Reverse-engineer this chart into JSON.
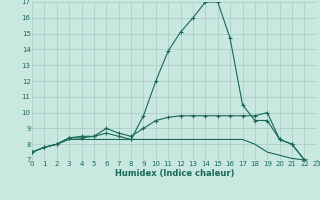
{
  "title": "",
  "xlabel": "Humidex (Indice chaleur)",
  "xlim": [
    0,
    23
  ],
  "ylim": [
    7,
    17
  ],
  "yticks": [
    7,
    8,
    9,
    10,
    11,
    12,
    13,
    14,
    15,
    16,
    17
  ],
  "xticks": [
    0,
    1,
    2,
    3,
    4,
    5,
    6,
    7,
    8,
    9,
    10,
    11,
    12,
    13,
    14,
    15,
    16,
    17,
    18,
    19,
    20,
    21,
    22,
    23
  ],
  "bg_color": "#c8e8e0",
  "grid_color": "#b0cec8",
  "line_color": "#1a6858",
  "line1_x": [
    0,
    1,
    2,
    3,
    4,
    5,
    6,
    7,
    8,
    9,
    10,
    11,
    12,
    13,
    14,
    15,
    16,
    17,
    18,
    19,
    20,
    21,
    22,
    23
  ],
  "line1_y": [
    7.5,
    7.8,
    8.0,
    8.4,
    8.5,
    8.5,
    8.7,
    8.5,
    8.3,
    9.8,
    12.0,
    13.9,
    15.1,
    16.0,
    17.0,
    17.0,
    14.7,
    10.5,
    9.5,
    9.5,
    8.3,
    8.0,
    7.0,
    6.9
  ],
  "line2_x": [
    0,
    1,
    2,
    3,
    4,
    5,
    6,
    7,
    8,
    9,
    10,
    11,
    12,
    13,
    14,
    15,
    16,
    17,
    18,
    19,
    20,
    21,
    22,
    23
  ],
  "line2_y": [
    7.5,
    7.8,
    8.0,
    8.4,
    8.4,
    8.5,
    9.0,
    8.7,
    8.5,
    9.0,
    9.5,
    9.7,
    9.8,
    9.8,
    9.8,
    9.8,
    9.8,
    9.8,
    9.8,
    10.0,
    8.3,
    8.0,
    7.0,
    6.9
  ],
  "line3_x": [
    0,
    1,
    2,
    3,
    4,
    5,
    6,
    7,
    8,
    9,
    10,
    11,
    12,
    13,
    14,
    15,
    16,
    17,
    18,
    19,
    20,
    21,
    22,
    23
  ],
  "line3_y": [
    7.5,
    7.8,
    8.0,
    8.3,
    8.3,
    8.3,
    8.3,
    8.3,
    8.3,
    8.3,
    8.3,
    8.3,
    8.3,
    8.3,
    8.3,
    8.3,
    8.3,
    8.3,
    8.0,
    7.5,
    7.3,
    7.1,
    7.0,
    6.9
  ]
}
